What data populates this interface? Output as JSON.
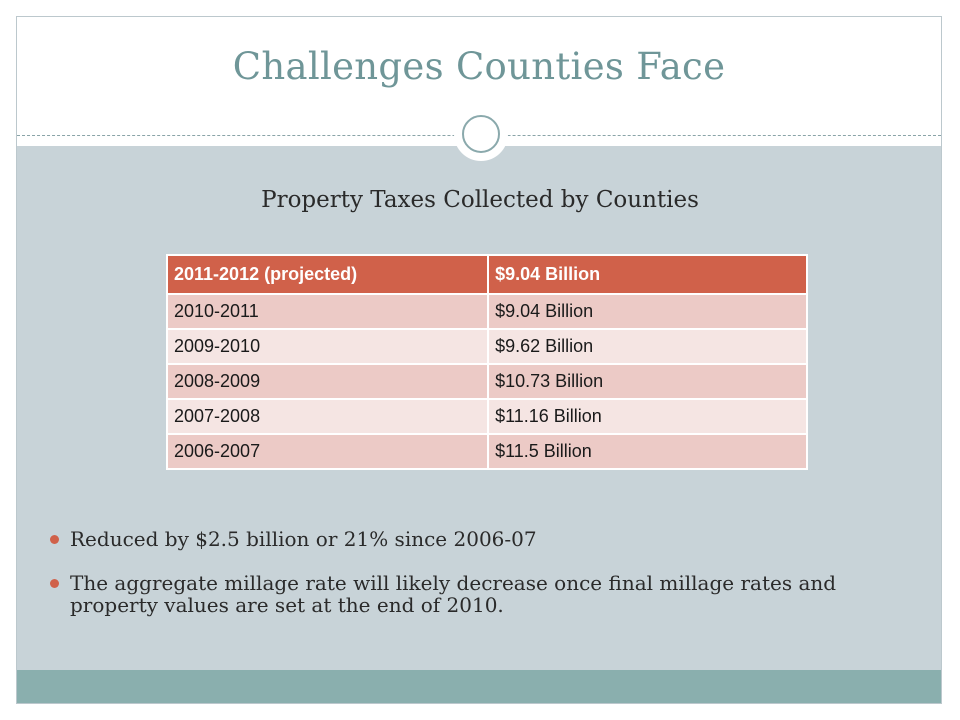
{
  "slide": {
    "title": "Challenges Counties Face",
    "subtitle": "Property Taxes Collected by Counties"
  },
  "table": {
    "header": [
      "2011-2012 (projected)",
      "$9.04 Billion"
    ],
    "rows": [
      [
        "2010-2011",
        "$9.04 Billion"
      ],
      [
        "2009-2010",
        "$9.62 Billion"
      ],
      [
        "2008-2009",
        "$10.73 Billion"
      ],
      [
        "2007-2008",
        "$11.16 Billion"
      ],
      [
        "2006-2007",
        "$11.5 Billion"
      ]
    ]
  },
  "bullets": [
    "Reduced by $2.5 billion or 21% since 2006-07",
    "The aggregate millage rate will likely decrease once final millage rates and property values are set at the end of 2010."
  ],
  "colors": {
    "title": "#6f9698",
    "content_bg": "#c8d3d8",
    "footer_bar": "#8aafae",
    "table_header": "#d0614a",
    "table_row_odd": "#eccac6",
    "table_row_even": "#f5e5e3",
    "bullet": "#d0614a"
  }
}
